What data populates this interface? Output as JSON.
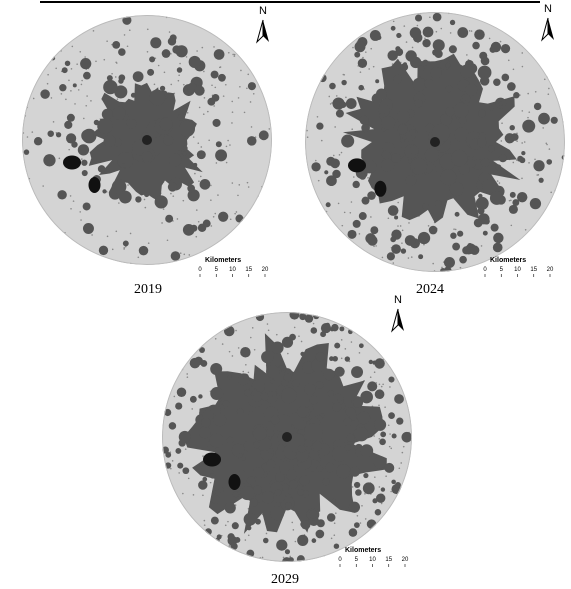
{
  "maps": [
    {
      "label": "2019",
      "north": "N",
      "scale": {
        "title": "Kilometers",
        "ticks": [
          0,
          5,
          10,
          15,
          20
        ]
      }
    },
    {
      "label": "2024",
      "north": "N",
      "scale": {
        "title": "Kilometers",
        "ticks": [
          0,
          5,
          10,
          15,
          20
        ]
      }
    },
    {
      "label": "2029",
      "north": "N",
      "scale": {
        "title": "Kilometers",
        "ticks": [
          0,
          5,
          10,
          15,
          20
        ]
      }
    }
  ]
}
